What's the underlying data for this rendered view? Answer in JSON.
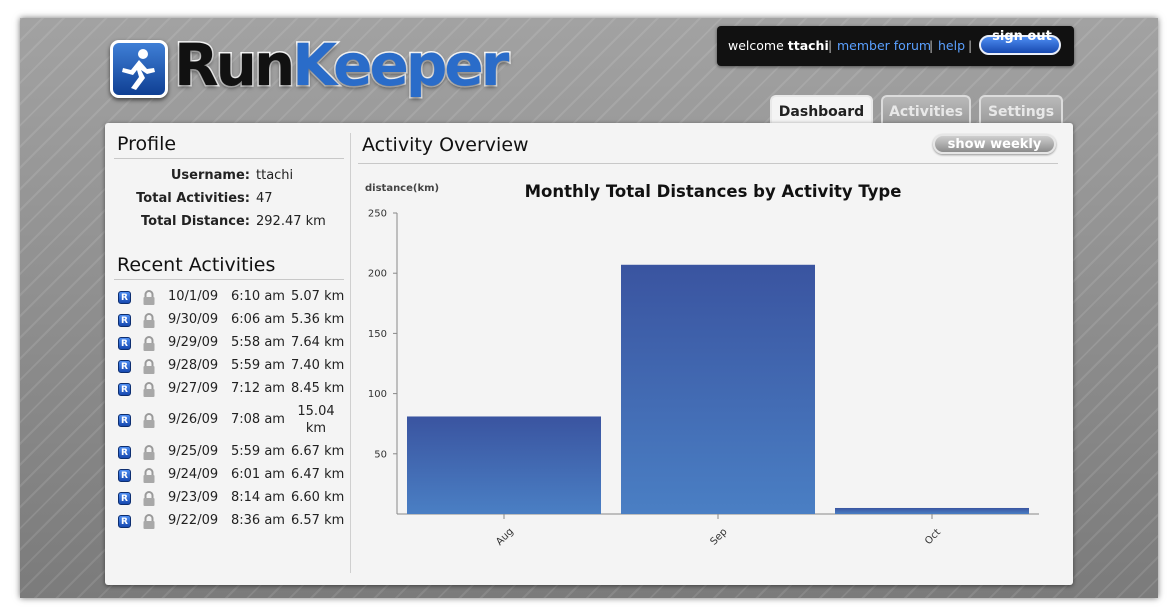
{
  "brand": {
    "run": "Run",
    "keeper": "Keeper"
  },
  "userbar": {
    "welcome": "welcome",
    "username": "ttachi",
    "sep": "|",
    "member_forum": "member forum",
    "help": "help",
    "sign_out": "sign out"
  },
  "tabs": [
    {
      "label": "Dashboard",
      "active": true
    },
    {
      "label": "Activities",
      "active": false
    },
    {
      "label": "Settings",
      "active": false
    }
  ],
  "profile": {
    "title": "Profile",
    "rows": [
      {
        "label": "Username:",
        "value": "ttachi"
      },
      {
        "label": "Total Activities:",
        "value": "47"
      },
      {
        "label": "Total Distance:",
        "value": "292.47 km"
      }
    ]
  },
  "recent": {
    "title": "Recent Activities",
    "badge": "R",
    "items": [
      {
        "date": "10/1/09",
        "time": "6:10 am",
        "distance": "5.07 km"
      },
      {
        "date": "9/30/09",
        "time": "6:06 am",
        "distance": "5.36 km"
      },
      {
        "date": "9/29/09",
        "time": "5:58 am",
        "distance": "7.64 km"
      },
      {
        "date": "9/28/09",
        "time": "5:59 am",
        "distance": "7.40 km"
      },
      {
        "date": "9/27/09",
        "time": "7:12 am",
        "distance": "8.45 km"
      },
      {
        "date": "9/26/09",
        "time": "7:08 am",
        "distance": "15.04 km"
      },
      {
        "date": "9/25/09",
        "time": "5:59 am",
        "distance": "6.67 km"
      },
      {
        "date": "9/24/09",
        "time": "6:01 am",
        "distance": "6.47 km"
      },
      {
        "date": "9/23/09",
        "time": "8:14 am",
        "distance": "6.60 km"
      },
      {
        "date": "9/22/09",
        "time": "8:36 am",
        "distance": "6.57 km"
      }
    ]
  },
  "overview": {
    "title": "Activity Overview",
    "toggle_label": "show weekly"
  },
  "colors": {
    "accent": "#2a6cc9",
    "bar_top": "#3a54a0",
    "bar_bottom": "#4a7fc4"
  },
  "chart_data": {
    "type": "bar",
    "title": "Monthly Total Distances by Activity Type",
    "ylabel": "distance(km)",
    "xlabel": "",
    "categories": [
      "Aug",
      "Sep",
      "Oct"
    ],
    "values": [
      81,
      207,
      5
    ],
    "ylim": [
      0,
      250
    ],
    "yticks": [
      50,
      100,
      150,
      200,
      250
    ],
    "grid": false,
    "legend": "none"
  }
}
